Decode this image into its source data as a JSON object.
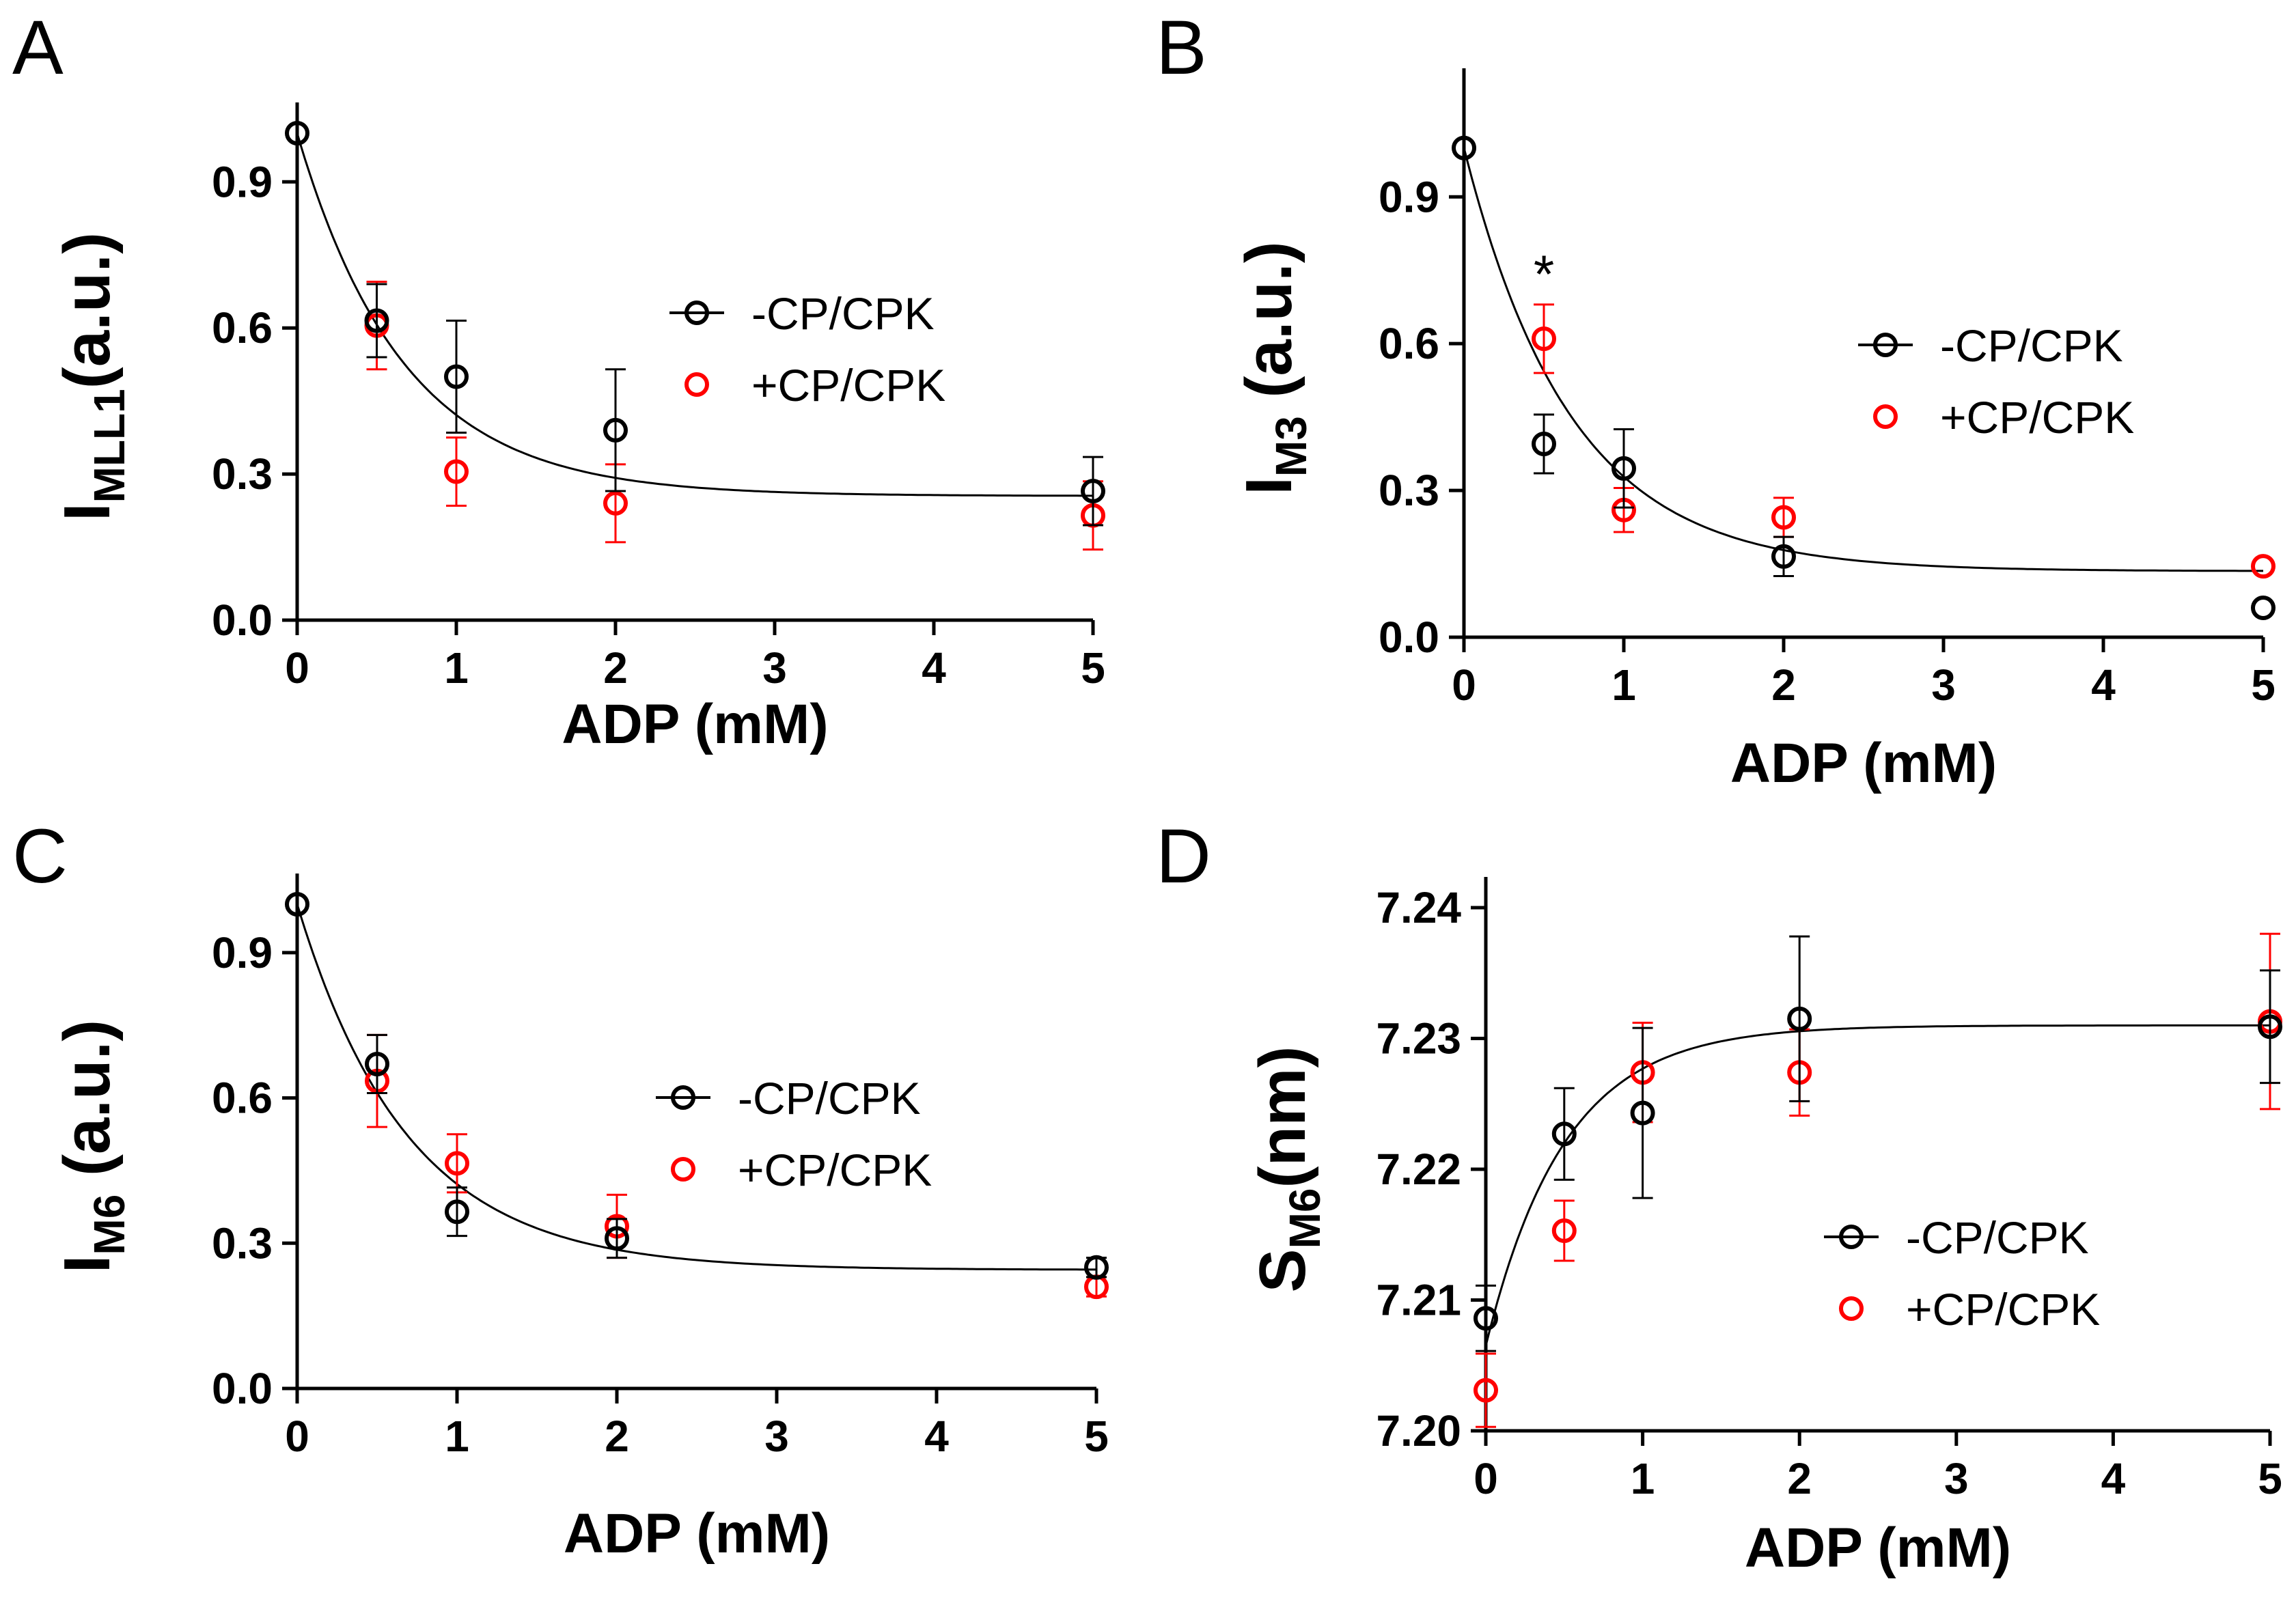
{
  "colors": {
    "black_series": "#000000",
    "red_series": "#ff0000",
    "fit": "#000000"
  },
  "chart_data": [
    {
      "panel": "A",
      "type": "scatter",
      "ylabel_main": "I",
      "ylabel_sub": "MLL1",
      "ylabel_unit": "(a.u.)",
      "xlabel": "ADP (mM)",
      "xlim": [
        0,
        5
      ],
      "ylim": [
        0,
        1.0
      ],
      "xticks": [
        0,
        1,
        2,
        3,
        4,
        5
      ],
      "xtick_labels": [
        "0",
        "1",
        "2",
        "3",
        "4",
        "5"
      ],
      "yticks": [
        0,
        0.3,
        0.6,
        0.9
      ],
      "ytick_labels": [
        "0.0",
        "0.3",
        "0.6",
        "0.9"
      ],
      "legend": {
        "placement": "upper-middle",
        "entries": [
          "-CP/CPK",
          "+CP/CPK"
        ]
      },
      "series": [
        {
          "name": "-CP/CPK",
          "color": "#000000",
          "x": [
            0,
            0.5,
            1,
            2,
            5
          ],
          "y": [
            1.0,
            0.615,
            0.5,
            0.39,
            0.265
          ],
          "err": [
            0,
            0.075,
            0.115,
            0.125,
            0.07
          ]
        },
        {
          "name": "+CP/CPK",
          "color": "#ff0000",
          "x": [
            0.5,
            1,
            2,
            5
          ],
          "y": [
            0.605,
            0.305,
            0.24,
            0.215
          ],
          "err": [
            0.09,
            0.07,
            0.08,
            0.07
          ]
        }
      ],
      "fit": {
        "type": "exp_decay",
        "y0": 1.0,
        "plateau": 0.255,
        "k": 1.5
      },
      "annotations": []
    },
    {
      "panel": "B",
      "type": "scatter",
      "ylabel_main": "I",
      "ylabel_sub": "M3",
      "ylabel_unit": " (a.u.)",
      "xlabel": "ADP (mM)",
      "xlim": [
        0,
        5
      ],
      "ylim": [
        0,
        1.1
      ],
      "xticks": [
        0,
        1,
        2,
        3,
        4,
        5
      ],
      "xtick_labels": [
        "0",
        "1",
        "2",
        "3",
        "4",
        "5"
      ],
      "yticks": [
        0,
        0.3,
        0.6,
        0.9
      ],
      "ytick_labels": [
        "0.0",
        "0.3",
        "0.6",
        "0.9"
      ],
      "legend": {
        "placement": "upper-right",
        "entries": [
          "-CP/CPK",
          "+CP/CPK"
        ]
      },
      "series": [
        {
          "name": "-CP/CPK",
          "color": "#000000",
          "x": [
            0,
            0.5,
            1,
            2,
            5
          ],
          "y": [
            1.0,
            0.395,
            0.345,
            0.165,
            0.06
          ],
          "err": [
            0,
            0.06,
            0.08,
            0.04,
            0
          ]
        },
        {
          "name": "+CP/CPK",
          "color": "#ff0000",
          "x": [
            0.5,
            1,
            2,
            5
          ],
          "y": [
            0.61,
            0.26,
            0.245,
            0.145
          ],
          "err": [
            0.07,
            0.045,
            0.04,
            0
          ]
        }
      ],
      "fit": {
        "type": "exp_decay",
        "y0": 1.0,
        "plateau": 0.135,
        "k": 1.5
      },
      "annotations": [
        {
          "text": "*",
          "x": 0.5,
          "y": 0.68
        }
      ]
    },
    {
      "panel": "C",
      "type": "scatter",
      "ylabel_main": "I",
      "ylabel_sub": "M6",
      "ylabel_unit": " (a.u.)",
      "xlabel": "ADP (mM)",
      "xlim": [
        0,
        5
      ],
      "ylim": [
        0,
        1.0
      ],
      "xticks": [
        0,
        1,
        2,
        3,
        4,
        5
      ],
      "xtick_labels": [
        "0",
        "1",
        "2",
        "3",
        "4",
        "5"
      ],
      "yticks": [
        0,
        0.3,
        0.6,
        0.9
      ],
      "ytick_labels": [
        "0.0",
        "0.3",
        "0.6",
        "0.9"
      ],
      "legend": {
        "placement": "middle-right",
        "entries": [
          "-CP/CPK",
          "+CP/CPK"
        ]
      },
      "series": [
        {
          "name": "-CP/CPK",
          "color": "#000000",
          "x": [
            0,
            0.5,
            1,
            2,
            5
          ],
          "y": [
            1.0,
            0.67,
            0.365,
            0.31,
            0.25
          ],
          "err": [
            0,
            0.06,
            0.05,
            0.04,
            0.02
          ]
        },
        {
          "name": "+CP/CPK",
          "color": "#ff0000",
          "x": [
            0.5,
            1,
            2,
            5
          ],
          "y": [
            0.635,
            0.465,
            0.335,
            0.21
          ],
          "err": [
            0.095,
            0.06,
            0.065,
            0.02
          ]
        }
      ],
      "fit": {
        "type": "exp_decay",
        "y0": 1.0,
        "plateau": 0.245,
        "k": 1.45
      },
      "annotations": []
    },
    {
      "panel": "D",
      "type": "scatter",
      "ylabel_main": "S",
      "ylabel_sub": "M6",
      "ylabel_unit": "(nm)",
      "xlabel": "ADP (mM)",
      "xlim": [
        0,
        5
      ],
      "ylim": [
        7.2,
        7.24
      ],
      "xticks": [
        0,
        1,
        2,
        3,
        4,
        5
      ],
      "xtick_labels": [
        "0",
        "1",
        "2",
        "3",
        "4",
        "5"
      ],
      "yticks": [
        7.2,
        7.21,
        7.22,
        7.23,
        7.24
      ],
      "ytick_labels": [
        "7.20",
        "7.21",
        "7.22",
        "7.23",
        "7.24"
      ],
      "legend": {
        "placement": "lower-right",
        "entries": [
          "-CP/CPK",
          "+CP/CPK"
        ]
      },
      "series": [
        {
          "name": "-CP/CPK",
          "color": "#000000",
          "x": [
            0,
            0.5,
            1,
            2,
            5
          ],
          "y": [
            7.2086,
            7.2227,
            7.2243,
            7.2315,
            7.2309
          ],
          "err": [
            0.0025,
            0.0035,
            0.0065,
            0.0063,
            0.0043
          ]
        },
        {
          "name": "+CP/CPK",
          "color": "#ff0000",
          "x": [
            0,
            0.5,
            1,
            2,
            5
          ],
          "y": [
            7.2031,
            7.2153,
            7.2274,
            7.2274,
            7.2313
          ],
          "err": [
            0.0028,
            0.0023,
            0.0038,
            0.0033,
            0.0067
          ]
        }
      ],
      "fit": {
        "type": "exp_rise",
        "y0": 7.2065,
        "plateau": 7.231,
        "k": 2.0
      },
      "annotations": []
    }
  ]
}
